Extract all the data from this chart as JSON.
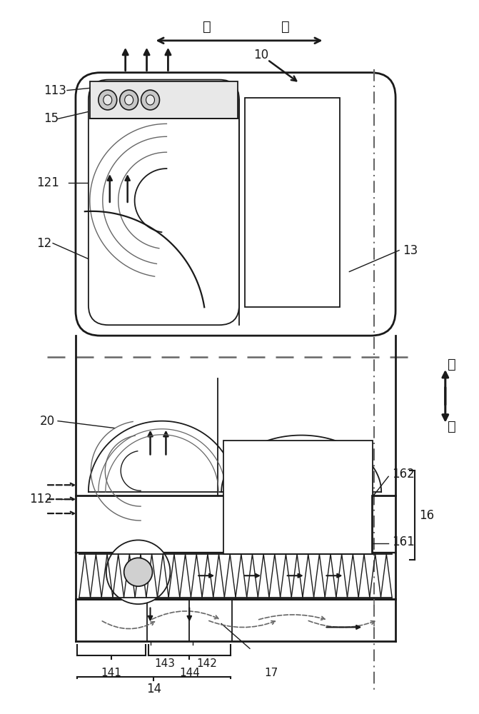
{
  "figure_width": 6.71,
  "figure_height": 10.0,
  "bg_color": "#ffffff",
  "lc": "#1a1a1a",
  "gc": "#666666",
  "labels": {
    "hou": "后",
    "qian": "前",
    "shang": "上",
    "xia": "下",
    "10": "10",
    "113": "113",
    "15": "15",
    "121": "121",
    "12": "12",
    "13": "13",
    "20": "20",
    "112": "112",
    "162": "162",
    "16": "16",
    "161": "161",
    "141": "141",
    "143": "143",
    "142": "142",
    "144": "144",
    "17": "17",
    "14": "14"
  }
}
